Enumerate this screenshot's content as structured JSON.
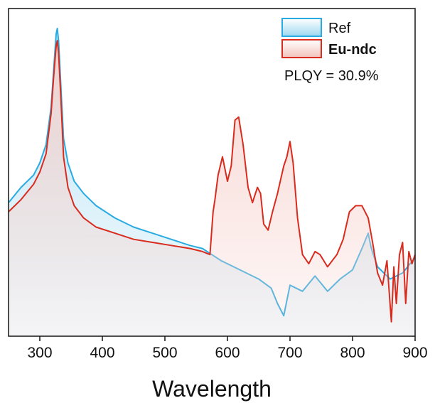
{
  "chart_data": {
    "type": "area",
    "xlabel": "Wavelength",
    "ylabel": "",
    "xlim": [
      250,
      900
    ],
    "ylim": [
      0,
      1
    ],
    "x_ticks": [
      300,
      400,
      500,
      600,
      700,
      800,
      900
    ],
    "y_ticks_shown": false,
    "grid": false,
    "legend_position": "top-right",
    "annotation": "PLQY = 30.9%",
    "colors": {
      "ref_line": "#29abe2",
      "ref_fill": "#b9e3f5",
      "eundc_line": "#d92b1e",
      "eundc_fill": "#f6d3ce"
    },
    "series": [
      {
        "name": "Ref",
        "legend_bold": false,
        "x": [
          250,
          270,
          290,
          300,
          310,
          318,
          322,
          326,
          328,
          330,
          334,
          338,
          345,
          355,
          370,
          390,
          420,
          450,
          480,
          510,
          540,
          560,
          575,
          590,
          610,
          630,
          650,
          670,
          680,
          690,
          700,
          720,
          740,
          760,
          780,
          800,
          815,
          825,
          830,
          840,
          860,
          880,
          900
        ],
        "y": [
          0.43,
          0.48,
          0.52,
          0.56,
          0.62,
          0.74,
          0.86,
          0.98,
          1.0,
          0.96,
          0.8,
          0.64,
          0.56,
          0.5,
          0.46,
          0.42,
          0.38,
          0.35,
          0.33,
          0.31,
          0.29,
          0.28,
          0.26,
          0.24,
          0.22,
          0.2,
          0.18,
          0.15,
          0.1,
          0.06,
          0.16,
          0.14,
          0.19,
          0.14,
          0.18,
          0.21,
          0.28,
          0.33,
          0.28,
          0.22,
          0.18,
          0.2,
          0.25
        ]
      },
      {
        "name": "Eu-ndc",
        "legend_bold": true,
        "x": [
          250,
          270,
          290,
          300,
          310,
          318,
          322,
          326,
          328,
          330,
          334,
          338,
          345,
          355,
          370,
          390,
          420,
          450,
          480,
          510,
          540,
          560,
          572,
          577,
          580,
          585,
          592,
          600,
          606,
          612,
          618,
          625,
          633,
          640,
          648,
          653,
          658,
          665,
          672,
          680,
          690,
          695,
          700,
          705,
          712,
          720,
          730,
          740,
          748,
          760,
          775,
          785,
          795,
          805,
          815,
          825,
          832,
          840,
          848,
          855,
          862,
          866,
          870,
          875,
          880,
          885,
          890,
          895,
          900
        ],
        "y": [
          0.4,
          0.44,
          0.49,
          0.53,
          0.59,
          0.72,
          0.84,
          0.94,
          0.96,
          0.92,
          0.76,
          0.58,
          0.48,
          0.42,
          0.38,
          0.35,
          0.33,
          0.31,
          0.3,
          0.29,
          0.28,
          0.27,
          0.26,
          0.4,
          0.44,
          0.52,
          0.58,
          0.5,
          0.55,
          0.7,
          0.71,
          0.62,
          0.48,
          0.43,
          0.48,
          0.46,
          0.36,
          0.34,
          0.4,
          0.46,
          0.55,
          0.58,
          0.63,
          0.56,
          0.38,
          0.26,
          0.23,
          0.27,
          0.26,
          0.22,
          0.26,
          0.31,
          0.4,
          0.42,
          0.42,
          0.38,
          0.3,
          0.2,
          0.16,
          0.24,
          0.04,
          0.22,
          0.1,
          0.26,
          0.3,
          0.1,
          0.27,
          0.23,
          0.26
        ]
      }
    ]
  }
}
